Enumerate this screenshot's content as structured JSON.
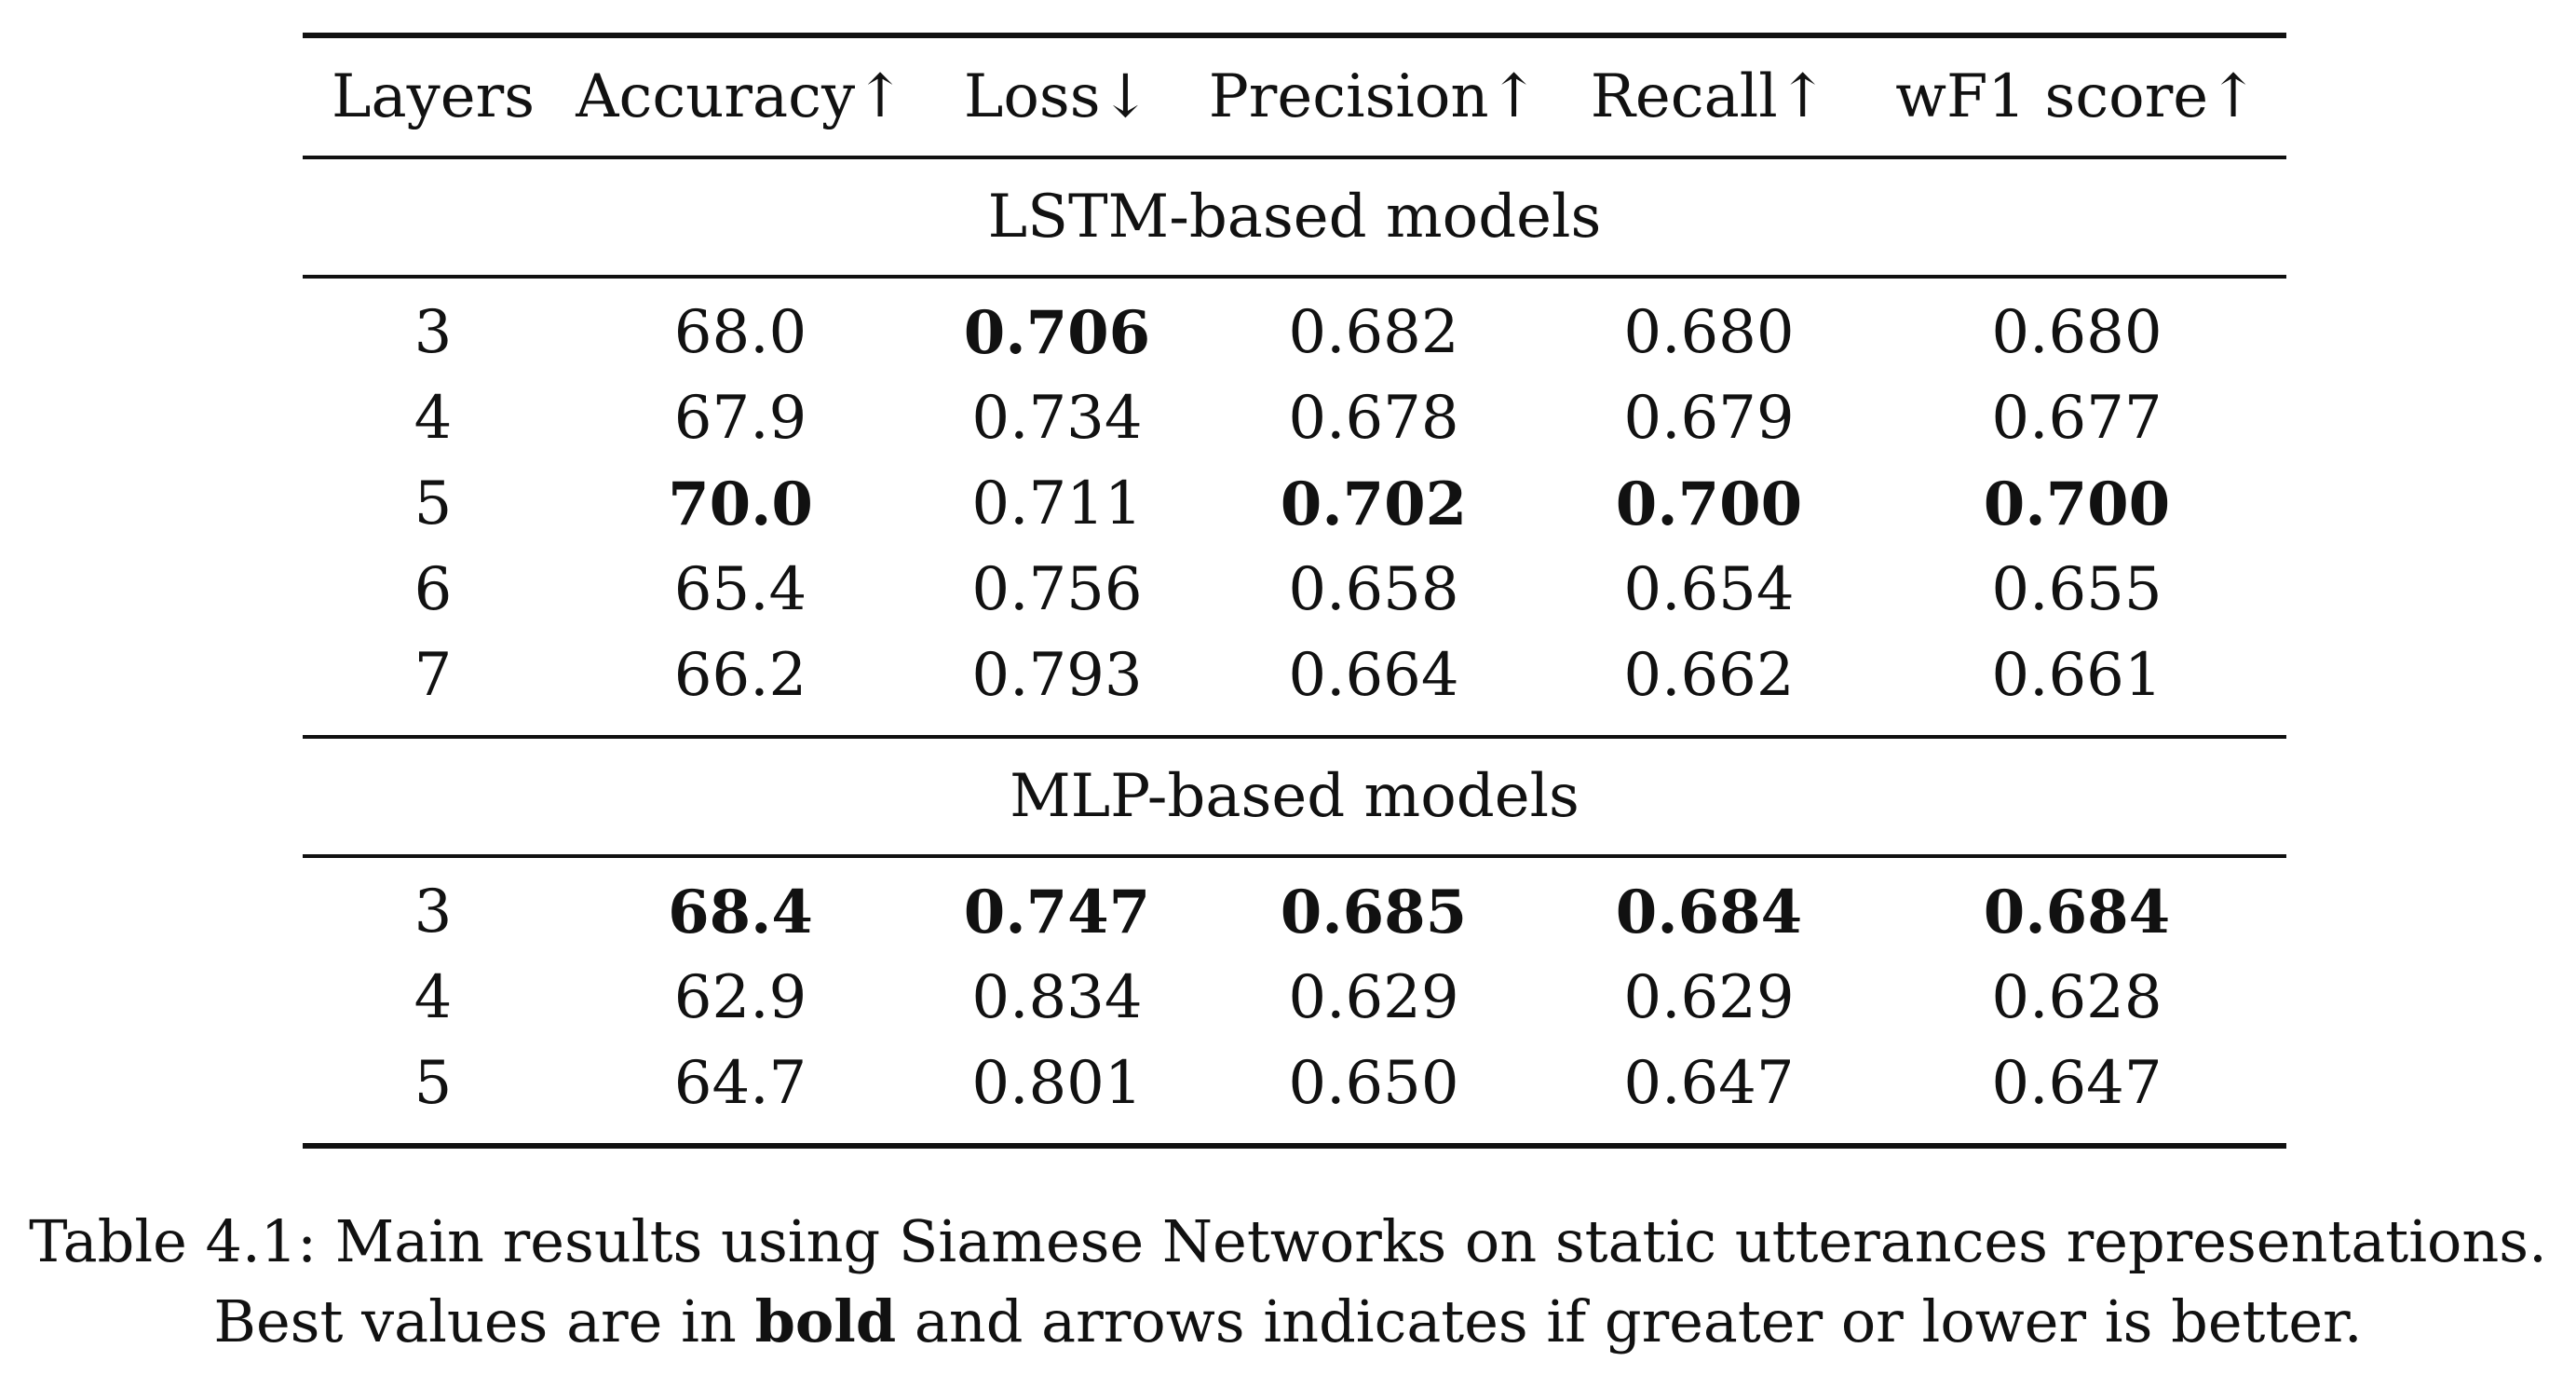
{
  "table": {
    "headers": [
      "Layers",
      "Accuracy↑",
      "Loss↓",
      "Precision↑",
      "Recall↑",
      "wF1 score↑"
    ],
    "sections": [
      {
        "title": "LSTM-based models",
        "rows": [
          {
            "cells": [
              "3",
              "68.0",
              "0.706",
              "0.682",
              "0.680",
              "0.680"
            ],
            "bold": [
              false,
              false,
              true,
              false,
              false,
              false
            ]
          },
          {
            "cells": [
              "4",
              "67.9",
              "0.734",
              "0.678",
              "0.679",
              "0.677"
            ],
            "bold": [
              false,
              false,
              false,
              false,
              false,
              false
            ]
          },
          {
            "cells": [
              "5",
              "70.0",
              "0.711",
              "0.702",
              "0.700",
              "0.700"
            ],
            "bold": [
              false,
              true,
              false,
              true,
              true,
              true
            ]
          },
          {
            "cells": [
              "6",
              "65.4",
              "0.756",
              "0.658",
              "0.654",
              "0.655"
            ],
            "bold": [
              false,
              false,
              false,
              false,
              false,
              false
            ]
          },
          {
            "cells": [
              "7",
              "66.2",
              "0.793",
              "0.664",
              "0.662",
              "0.661"
            ],
            "bold": [
              false,
              false,
              false,
              false,
              false,
              false
            ]
          }
        ]
      },
      {
        "title": "MLP-based models",
        "rows": [
          {
            "cells": [
              "3",
              "68.4",
              "0.747",
              "0.685",
              "0.684",
              "0.684"
            ],
            "bold": [
              false,
              true,
              true,
              true,
              true,
              true
            ]
          },
          {
            "cells": [
              "4",
              "62.9",
              "0.834",
              "0.629",
              "0.629",
              "0.628"
            ],
            "bold": [
              false,
              false,
              false,
              false,
              false,
              false
            ]
          },
          {
            "cells": [
              "5",
              "64.7",
              "0.801",
              "0.650",
              "0.647",
              "0.647"
            ],
            "bold": [
              false,
              false,
              false,
              false,
              false,
              false
            ]
          }
        ]
      }
    ]
  },
  "caption": {
    "line1": "Table 4.1: Main results using Siamese Networks on static utterances representations.",
    "line2_prefix": "Best values are in ",
    "line2_bold": "bold",
    "line2_suffix": " and arrows indicates if greater or lower is better."
  }
}
